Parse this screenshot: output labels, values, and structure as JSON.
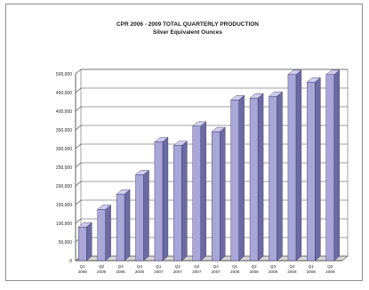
{
  "chart_data": {
    "type": "bar",
    "title": "CPR 2006 - 2009 TOTAL QUARTERLY PRODUCTION",
    "subtitle": "Silver Equivalent Ounces",
    "xlabel": "",
    "ylabel": "",
    "ylim": [
      0,
      500000
    ],
    "yticks": [
      "0",
      "50,000",
      "100,000",
      "150,000",
      "200,000",
      "250,000",
      "300,000",
      "350,000",
      "400,000",
      "450,000",
      "500,000"
    ],
    "categories": [
      {
        "q": "Q1",
        "y": "2006"
      },
      {
        "q": "Q2",
        "y": "2006"
      },
      {
        "q": "Q3",
        "y": "2006"
      },
      {
        "q": "Q4",
        "y": "2006"
      },
      {
        "q": "Q1",
        "y": "2007"
      },
      {
        "q": "Q2",
        "y": "2007"
      },
      {
        "q": "Q3",
        "y": "2007"
      },
      {
        "q": "Q4",
        "y": "2007"
      },
      {
        "q": "Q1",
        "y": "2008"
      },
      {
        "q": "Q2",
        "y": "2008"
      },
      {
        "q": "Q3",
        "y": "2008"
      },
      {
        "q": "Q4",
        "y": "2008"
      },
      {
        "q": "Q1",
        "y": "2009"
      },
      {
        "q": "Q2",
        "y": "2009"
      }
    ],
    "values": [
      90000,
      137000,
      178000,
      230000,
      318000,
      308000,
      360000,
      345000,
      430000,
      435000,
      440000,
      498000,
      478000,
      498000
    ],
    "grid": true,
    "legend": "none",
    "colors": {
      "bar_front": "#a9a6d8",
      "bar_side": "#6c6aa3",
      "bar_top": "#cfcdee",
      "bar_outline": "#2f2d5c",
      "grid": "#444444",
      "wall": "#ffffff"
    }
  }
}
